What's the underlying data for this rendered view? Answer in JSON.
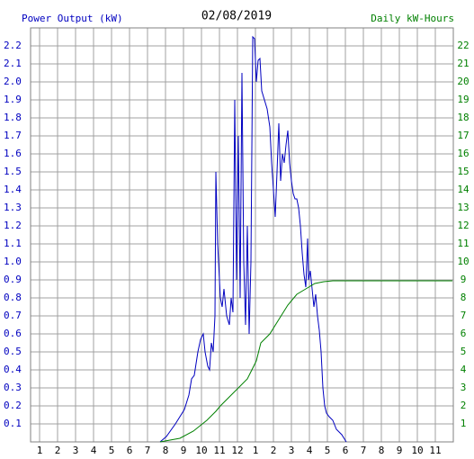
{
  "chart_data": {
    "type": "line",
    "title": "02/08/2019",
    "y_label": "Power Output (kW)",
    "y2_label": "Daily kW-Hours",
    "xlim": [
      0.5,
      24
    ],
    "xticks": [
      1,
      2,
      3,
      4,
      5,
      6,
      7,
      8,
      9,
      10,
      11,
      12,
      {
        "value": 13,
        "label": "1"
      },
      {
        "value": 14,
        "label": "2"
      },
      {
        "value": 15,
        "label": "3"
      },
      {
        "value": 16,
        "label": "4"
      },
      {
        "value": 17,
        "label": "5"
      },
      {
        "value": 18,
        "label": "6"
      },
      {
        "value": 19,
        "label": "7"
      },
      {
        "value": 20,
        "label": "8"
      },
      {
        "value": 21,
        "label": "9"
      },
      {
        "value": 22,
        "label": "10"
      },
      {
        "value": 23,
        "label": "11"
      }
    ],
    "ylim": [
      0,
      2.3
    ],
    "yticks": [
      0.1,
      0.2,
      0.3,
      0.4,
      0.5,
      0.6,
      0.7,
      0.8,
      0.9,
      {
        "value": 1,
        "label": "1.0"
      },
      1.1,
      1.2,
      1.3,
      1.4,
      1.5,
      1.6,
      1.7,
      1.8,
      1.9,
      {
        "value": 2,
        "label": "2.0"
      },
      2.1,
      2.2
    ],
    "y2lim": [
      0,
      23
    ],
    "y2ticks": [
      1,
      2,
      3,
      4,
      5,
      6,
      7,
      8,
      9,
      10,
      11,
      12,
      13,
      14,
      15,
      16,
      17,
      18,
      19,
      20,
      21,
      22
    ],
    "grid": true,
    "series": [
      {
        "name": "Power Output (kW)",
        "color": "#0000c0",
        "x": [
          7.7,
          8.05,
          8.55,
          9.05,
          9.3,
          9.45,
          9.6,
          9.8,
          9.95,
          10.1,
          10.2,
          10.35,
          10.45,
          10.55,
          10.65,
          10.75,
          10.8,
          10.9,
          11.05,
          11.15,
          11.25,
          11.4,
          11.55,
          11.65,
          11.75,
          11.85,
          11.95,
          12.05,
          12.15,
          12.25,
          12.35,
          12.45,
          12.55,
          12.65,
          12.75,
          12.85,
          12.95,
          13.05,
          13.15,
          13.25,
          13.35,
          13.5,
          13.65,
          13.8,
          13.9,
          14.0,
          14.1,
          14.2,
          14.3,
          14.4,
          14.5,
          14.6,
          14.7,
          14.8,
          14.9,
          15.0,
          15.1,
          15.2,
          15.3,
          15.4,
          15.5,
          15.6,
          15.7,
          15.8,
          15.9,
          15.95,
          16.05,
          16.15,
          16.25,
          16.35,
          16.45,
          16.55,
          16.65,
          16.75,
          16.85,
          16.95,
          17.1,
          17.3,
          17.5,
          17.8,
          18.05
        ],
        "values": [
          0,
          0.03,
          0.1,
          0.18,
          0.26,
          0.35,
          0.37,
          0.5,
          0.57,
          0.6,
          0.5,
          0.42,
          0.4,
          0.55,
          0.5,
          0.7,
          1.5,
          1.1,
          0.8,
          0.75,
          0.85,
          0.7,
          0.65,
          0.8,
          0.72,
          1.9,
          0.9,
          1.7,
          0.8,
          2.05,
          1.0,
          0.65,
          1.2,
          0.6,
          1.0,
          2.25,
          2.24,
          2.0,
          2.12,
          2.13,
          1.95,
          1.9,
          1.85,
          1.75,
          1.55,
          1.4,
          1.25,
          1.5,
          1.77,
          1.45,
          1.6,
          1.55,
          1.65,
          1.73,
          1.55,
          1.45,
          1.38,
          1.35,
          1.35,
          1.3,
          1.2,
          1.05,
          0.93,
          0.86,
          1.13,
          0.9,
          0.95,
          0.85,
          0.75,
          0.82,
          0.7,
          0.62,
          0.5,
          0.3,
          0.2,
          0.16,
          0.14,
          0.12,
          0.07,
          0.04,
          0
        ]
      },
      {
        "name": "Daily kW-Hours",
        "color": "#008000",
        "axis": "y2",
        "x": [
          7.7,
          8.8,
          9.55,
          10.3,
          10.8,
          11.05,
          11.55,
          12.05,
          12.55,
          12.8,
          13.05,
          13.3,
          13.8,
          14.3,
          14.8,
          15.3,
          15.8,
          16.3,
          16.8,
          17.3,
          23.95
        ],
        "values": [
          0,
          0.2,
          0.6,
          1.2,
          1.7,
          2.0,
          2.5,
          3.0,
          3.5,
          4.0,
          4.5,
          5.5,
          6.0,
          6.8,
          7.6,
          8.2,
          8.5,
          8.8,
          8.9,
          8.95,
          8.95
        ]
      }
    ]
  }
}
